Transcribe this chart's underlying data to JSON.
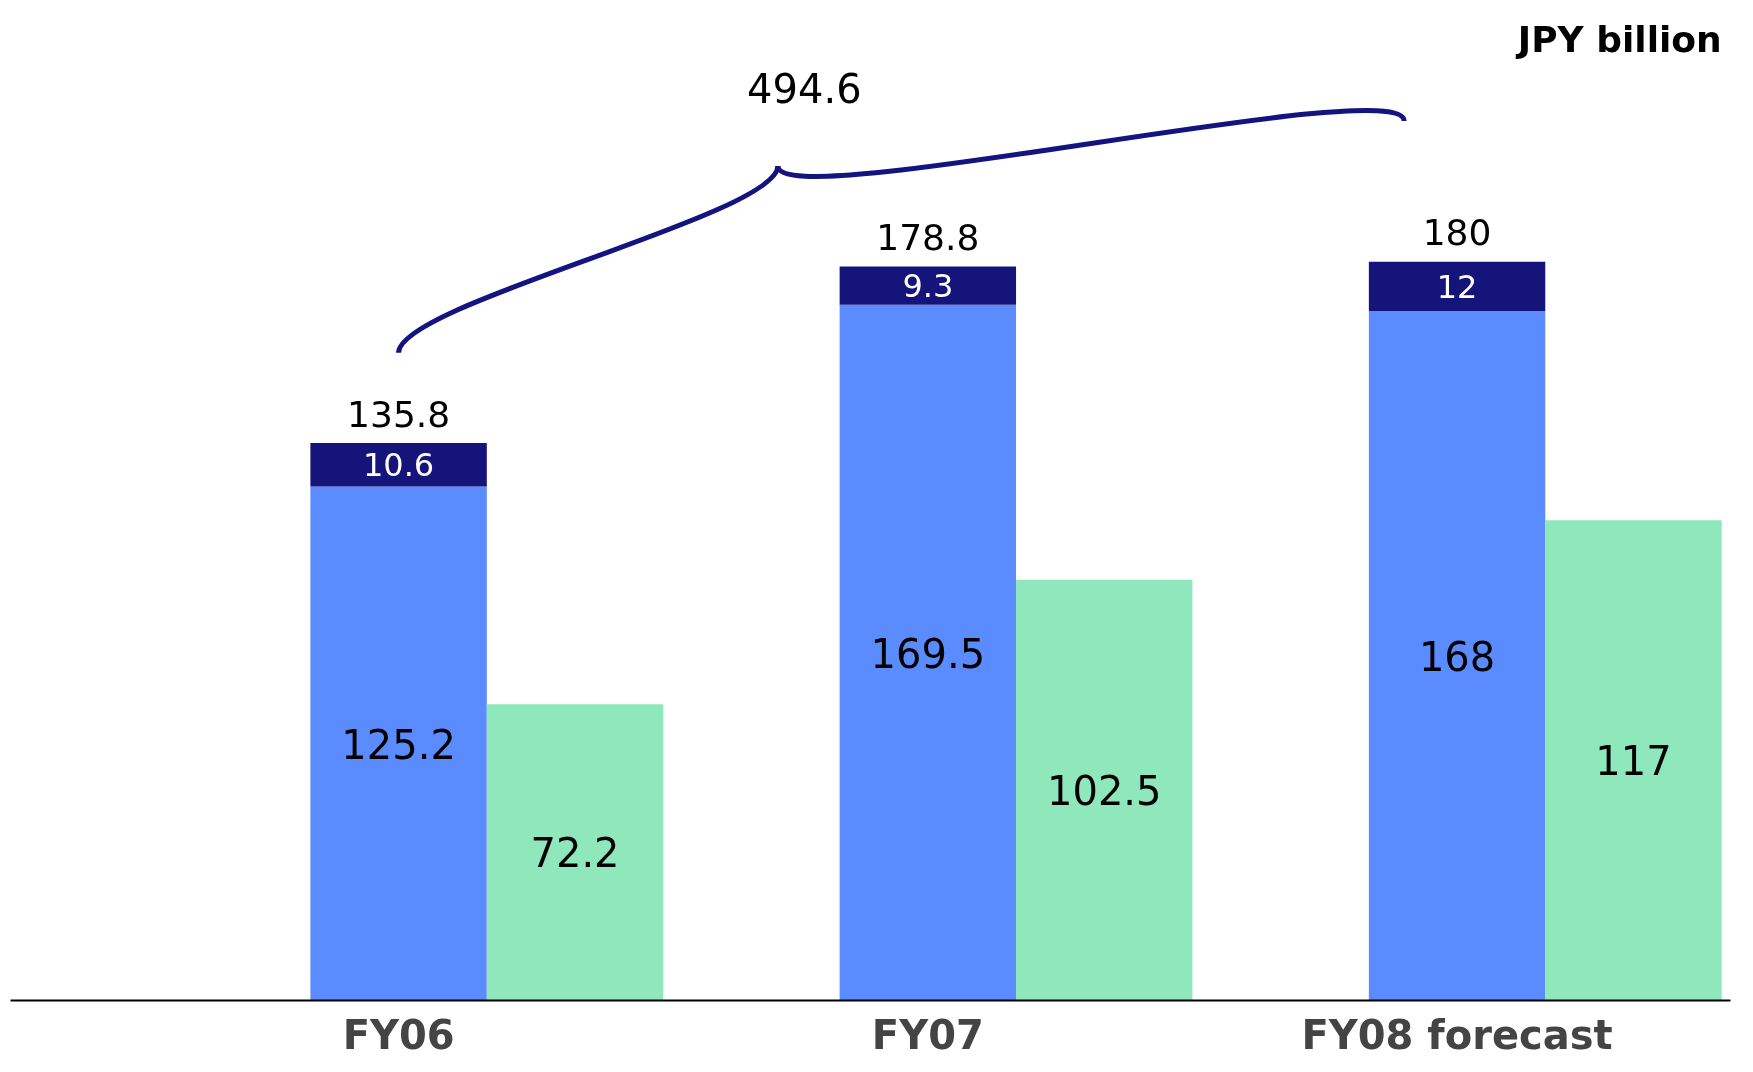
{
  "chart_data": {
    "type": "bar",
    "stacked": true,
    "categories": [
      "FY06",
      null,
      "FY07",
      null,
      "FY08 forecast",
      null
    ],
    "series": [
      {
        "color": "#5b8cff",
        "values": [
          125.2,
          null,
          169.5,
          null,
          168,
          null
        ]
      },
      {
        "color": "#14147a",
        "values": [
          10.6,
          null,
          9.3,
          null,
          12,
          null
        ]
      },
      {
        "color": "#8fe8bc",
        "values": [
          null,
          72.2,
          null,
          102.5,
          null,
          117
        ]
      }
    ],
    "totals": [
      "135.8",
      null,
      "178.8",
      null,
      "180",
      null
    ],
    "annotations": [
      "JPY billion",
      "494.6"
    ],
    "data_labels": true,
    "tick_labels": "x"
  }
}
